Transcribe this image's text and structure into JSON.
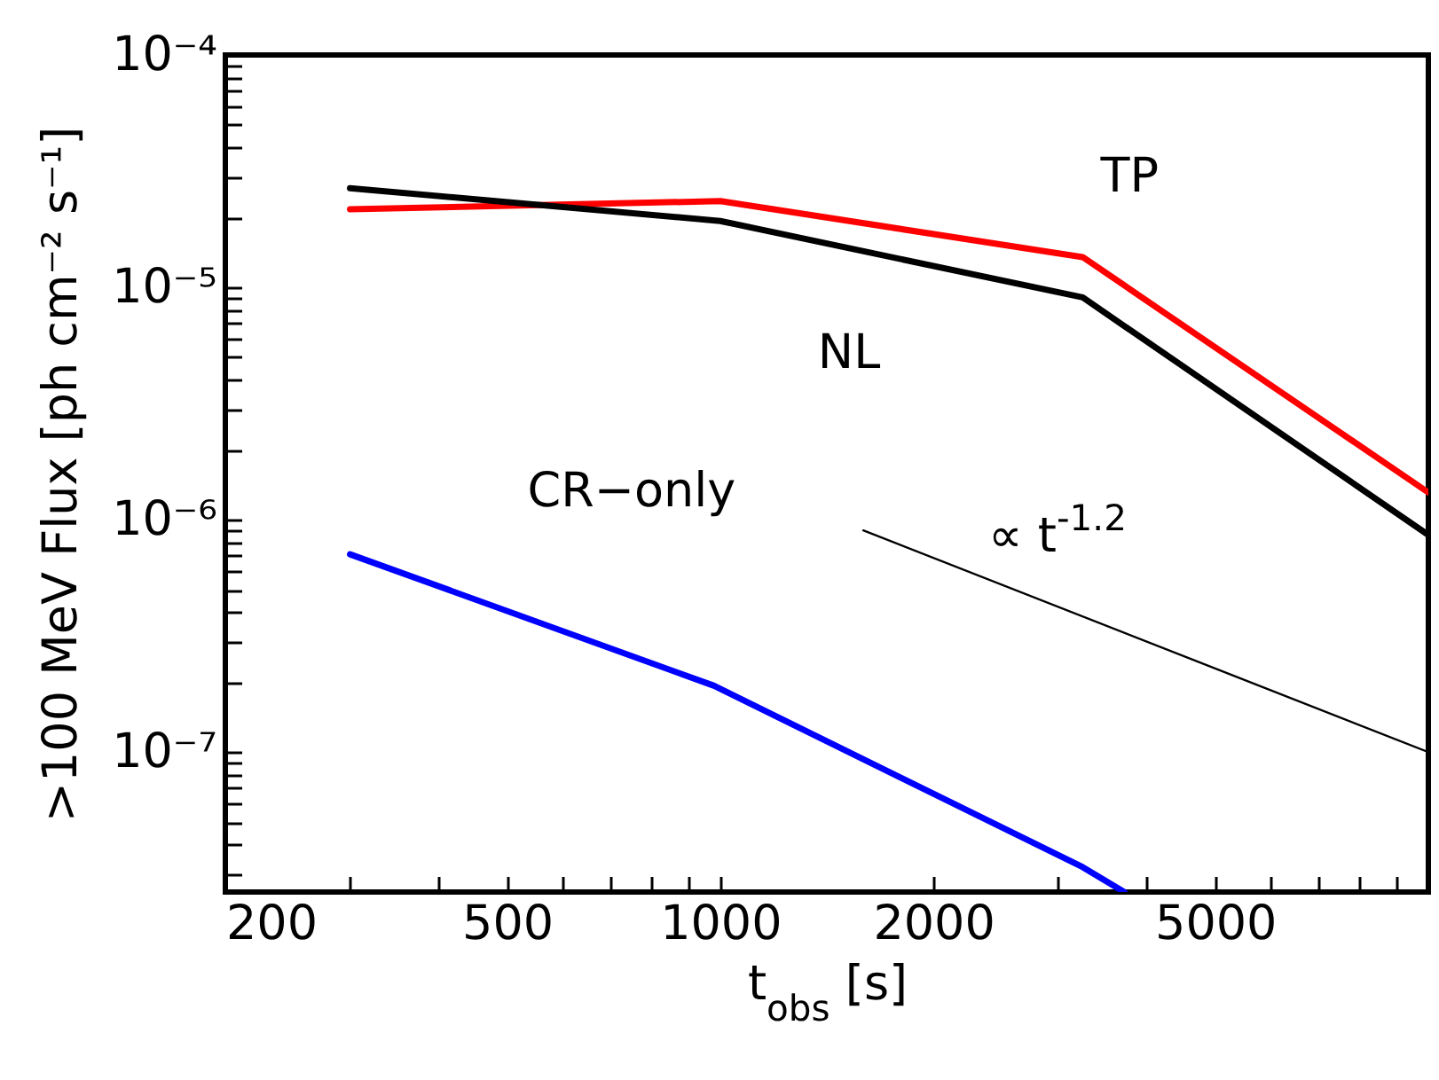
{
  "chart_data": {
    "type": "line",
    "xlabel": "t$_{obs}$ [s]",
    "ylabel": ">100 MeV Flux [ph cm⁻² s⁻¹]",
    "log": "xy",
    "grid": false,
    "xlim": [
      200,
      10000
    ],
    "ylim": [
      2.5e-08,
      0.0001
    ],
    "xticks": [
      200,
      {
        "value": 300,
        "label": null
      },
      {
        "value": 400,
        "label": null
      },
      500,
      {
        "value": 600,
        "label": null
      },
      {
        "value": 700,
        "label": null
      },
      {
        "value": 800,
        "label": null
      },
      {
        "value": 900,
        "label": null
      },
      1000,
      2000,
      {
        "value": 3000,
        "label": null
      },
      {
        "value": 4000,
        "label": null
      },
      5000,
      {
        "value": 6000,
        "label": null
      },
      {
        "value": 7000,
        "label": null
      },
      {
        "value": 8000,
        "label": null
      },
      {
        "value": 9000,
        "label": null
      }
    ],
    "yticks": [
      {
        "value": 3e-08,
        "label": null
      },
      {
        "value": 4e-08,
        "label": null
      },
      {
        "value": 5e-08,
        "label": null
      },
      {
        "value": 6e-08,
        "label": null
      },
      {
        "value": 7e-08,
        "label": null
      },
      {
        "value": 8e-08,
        "label": null
      },
      {
        "value": 9e-08,
        "label": null
      },
      {
        "value": 1e-07,
        "label": "10⁻⁷"
      },
      {
        "value": 2e-07,
        "label": null
      },
      {
        "value": 3e-07,
        "label": null
      },
      {
        "value": 4e-07,
        "label": null
      },
      {
        "value": 5e-07,
        "label": null
      },
      {
        "value": 6e-07,
        "label": null
      },
      {
        "value": 7e-07,
        "label": null
      },
      {
        "value": 8e-07,
        "label": null
      },
      {
        "value": 9e-07,
        "label": null
      },
      {
        "value": 1e-06,
        "label": "10⁻⁶"
      },
      {
        "value": 2e-06,
        "label": null
      },
      {
        "value": 3e-06,
        "label": null
      },
      {
        "value": 4e-06,
        "label": null
      },
      {
        "value": 5e-06,
        "label": null
      },
      {
        "value": 6e-06,
        "label": null
      },
      {
        "value": 7e-06,
        "label": null
      },
      {
        "value": 8e-06,
        "label": null
      },
      {
        "value": 9e-06,
        "label": null
      },
      {
        "value": 1e-05,
        "label": "10⁻⁵"
      },
      {
        "value": 2e-05,
        "label": null
      },
      {
        "value": 3e-05,
        "label": null
      },
      {
        "value": 4e-05,
        "label": null
      },
      {
        "value": 5e-05,
        "label": null
      },
      {
        "value": 6e-05,
        "label": null
      },
      {
        "value": 7e-05,
        "label": null
      },
      {
        "value": 8e-05,
        "label": null
      },
      {
        "value": 9e-05,
        "label": null
      },
      {
        "value": 0.0001,
        "label": "10⁻⁴"
      }
    ],
    "series": [
      {
        "name": "TP",
        "color": "#ff0000",
        "x": [
          300,
          1000,
          3250,
          10000
        ],
        "values": [
          2.17e-05,
          2.35e-05,
          1.35e-05,
          1.31e-06
        ]
      },
      {
        "name": "NL",
        "color": "#000000",
        "x": [
          300,
          1000,
          3250,
          10000
        ],
        "values": [
          2.67e-05,
          1.93e-05,
          9.05e-06,
          8.6e-07
        ]
      },
      {
        "name": "CR−only",
        "color": "#0000ff",
        "x": [
          300,
          980,
          3250,
          3720
        ],
        "values": [
          7.1e-07,
          1.93e-07,
          3.2e-08,
          2.5e-08
        ]
      },
      {
        "type": "line",
        "color": "#000000",
        "x": [
          1592,
          10000
        ],
        "values": [
          9e-07,
          1e-07
        ]
      }
    ],
    "annotations": [
      "∝ t$^{-1.2}$"
    ]
  }
}
